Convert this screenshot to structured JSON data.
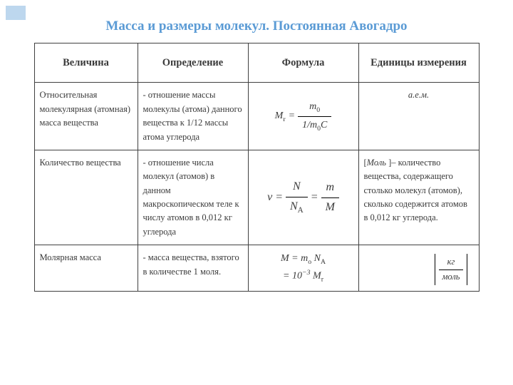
{
  "title": "Масса и размеры молекул. Постоянная Авогадро",
  "columns": [
    "Величина",
    "Определение",
    "Формула",
    "Единицы измерения"
  ],
  "rows": [
    {
      "quantity": "Относительная молекулярная (атомная) масса вещества",
      "definition": "- отношение массы молекулы (атома) данного вещества к 1/12 массы атома углерода",
      "formula": {
        "lhs": "M",
        "lhs_sub": "r",
        "eq": "=",
        "num": "m",
        "num_sub": "0",
        "den_pre": "1/",
        "den_m": "m",
        "den_sub": "0",
        "den_post": "C"
      },
      "units": "а.е.м."
    },
    {
      "quantity": "Количество вещества",
      "definition": "- отношение числа молекул (атомов) в данном макроскопическом теле к числу атомов в 0,012 кг углерода",
      "formula": {
        "lhs": "ν",
        "eq": "=",
        "f1_num": "N",
        "f1_den": "N",
        "f1_den_sub": "A",
        "eq2": "=",
        "f2_num": "m",
        "f2_den": "M"
      },
      "units_prefix": "[",
      "units_italic": "Моль ",
      "units_suffix": "]– количество вещества, содержащего столько молекул (атомов), сколько содержится атомов в 0,012 кг углерода."
    },
    {
      "quantity": "Молярная масса",
      "definition": "- масса вещества, взятого в количестве 1 моля.",
      "formula_line1_a": "М = m",
      "formula_line1_sub1": "o",
      "formula_line1_b": " N",
      "formula_line1_sub2": "A",
      "formula_line2_a": "= 10",
      "formula_line2_sup": "−3",
      "formula_line2_b": " M",
      "formula_line2_sub": "r",
      "units_frac_num": "кг",
      "units_frac_den": "моль"
    }
  ]
}
